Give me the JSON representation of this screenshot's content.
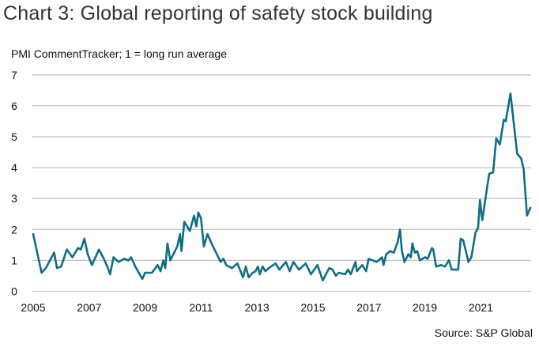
{
  "chart_data": {
    "type": "line",
    "title": "Chart 3: Global reporting of safety stock building",
    "subtitle": "PMI CommentTracker; 1 = long run average",
    "source": "Source: S&P Global",
    "xlabel": "",
    "ylabel": "",
    "xlim": [
      2005,
      2022.8
    ],
    "ylim": [
      0,
      7
    ],
    "grid": true,
    "x_ticks": [
      "2005",
      "2007",
      "2009",
      "2011",
      "2013",
      "2015",
      "2017",
      "2019",
      "2021"
    ],
    "y_ticks": [
      "0",
      "1",
      "2",
      "3",
      "4",
      "5",
      "6",
      "7"
    ],
    "color": "#0e6e85",
    "series": [
      {
        "x": [
          2005.0,
          2005.3,
          2005.45,
          2005.75,
          2005.85,
          2006.0,
          2006.2,
          2006.4,
          2006.6,
          2006.7,
          2006.83,
          2006.95,
          2007.1,
          2007.35,
          2007.5,
          2007.65,
          2007.75,
          2007.87,
          2008.05,
          2008.25,
          2008.4,
          2008.5,
          2008.65,
          2008.9,
          2009.0,
          2009.25,
          2009.45,
          2009.55,
          2009.65,
          2009.72,
          2009.8,
          2009.9,
          2010.15,
          2010.25,
          2010.3,
          2010.4,
          2010.6,
          2010.75,
          2010.83,
          2010.9,
          2011.0,
          2011.1,
          2011.23,
          2011.4,
          2011.7,
          2011.8,
          2011.9,
          2012.1,
          2012.3,
          2012.5,
          2012.6,
          2012.7,
          2012.85,
          2012.95,
          2013.03,
          2013.1,
          2013.2,
          2013.3,
          2013.42,
          2013.66,
          2013.8,
          2014.03,
          2014.17,
          2014.3,
          2014.5,
          2014.74,
          2014.93,
          2015.16,
          2015.35,
          2015.58,
          2015.7,
          2015.82,
          2015.92,
          2016.15,
          2016.25,
          2016.35,
          2016.52,
          2016.57,
          2016.76,
          2016.9,
          2016.99,
          2017.28,
          2017.47,
          2017.52,
          2017.62,
          2017.75,
          2017.89,
          2018.03,
          2018.11,
          2018.18,
          2018.27,
          2018.41,
          2018.5,
          2018.55,
          2018.64,
          2018.73,
          2018.82,
          2019.01,
          2019.1,
          2019.25,
          2019.3,
          2019.4,
          2019.58,
          2019.72,
          2019.86,
          2019.96,
          2020.19,
          2020.28,
          2020.37,
          2020.56,
          2020.66,
          2020.81,
          2020.9,
          2020.97,
          2021.05,
          2021.14,
          2021.3,
          2021.44,
          2021.55,
          2021.68,
          2021.82,
          2021.89,
          2022.06,
          2022.3,
          2022.44,
          2022.53,
          2022.65,
          2022.77
        ],
        "values": [
          1.85,
          0.6,
          0.75,
          1.25,
          0.75,
          0.8,
          1.35,
          1.1,
          1.4,
          1.35,
          1.7,
          1.2,
          0.85,
          1.35,
          1.1,
          0.8,
          0.55,
          1.1,
          0.95,
          1.05,
          1.0,
          1.1,
          0.8,
          0.4,
          0.6,
          0.6,
          0.85,
          0.65,
          1.0,
          0.75,
          1.55,
          1.0,
          1.45,
          1.85,
          1.3,
          2.25,
          1.95,
          2.45,
          2.1,
          2.55,
          2.35,
          1.45,
          1.85,
          1.5,
          0.95,
          1.05,
          0.85,
          0.75,
          0.9,
          0.45,
          0.8,
          0.45,
          0.6,
          0.65,
          0.8,
          0.55,
          0.8,
          0.65,
          0.75,
          0.9,
          0.7,
          0.95,
          0.65,
          0.95,
          0.7,
          0.9,
          0.55,
          0.85,
          0.35,
          0.75,
          0.7,
          0.5,
          0.6,
          0.55,
          0.7,
          0.55,
          0.95,
          0.65,
          0.85,
          0.65,
          1.05,
          0.95,
          1.1,
          0.85,
          1.2,
          1.3,
          1.25,
          1.6,
          2.0,
          1.3,
          0.95,
          1.2,
          1.1,
          1.55,
          1.25,
          1.3,
          1.0,
          1.1,
          1.05,
          1.4,
          1.35,
          0.8,
          0.85,
          0.8,
          1.0,
          0.7,
          0.7,
          1.7,
          1.65,
          0.95,
          1.1,
          1.9,
          2.05,
          2.95,
          2.3,
          2.85,
          3.8,
          3.85,
          4.95,
          4.75,
          5.55,
          5.5,
          6.4,
          4.45,
          4.3,
          3.95,
          2.45,
          2.7
        ]
      }
    ]
  }
}
